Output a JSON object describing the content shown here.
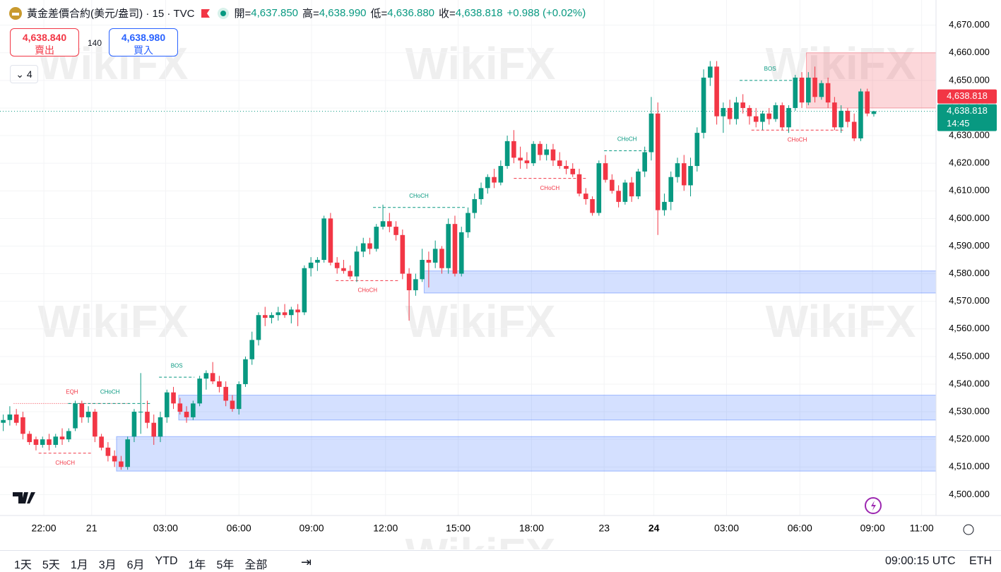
{
  "header": {
    "symbol": "黃金差價合約(美元/盎司) · 15 · TVC",
    "ohlc_labels": [
      "開=",
      "高=",
      "低=",
      "收="
    ],
    "ohlc_values": [
      "4,637.850",
      "4,638.990",
      "4,636.880",
      "4,638.818"
    ],
    "change": "+0.988 (+0.02%)",
    "sell": {
      "price": "4,638.840",
      "label": "賣出"
    },
    "spread": "140",
    "buy": {
      "price": "4,638.980",
      "label": "買入"
    },
    "indicators": "4"
  },
  "chart_data": {
    "type": "candlestick",
    "watermark": "WikiFX",
    "up_color": "#089981",
    "down_color": "#f23645",
    "xlim": [
      -0.5,
      142.5
    ],
    "ylim": [
      4496,
      4674
    ],
    "xticks": [
      {
        "value": 6.2,
        "label": "22:00"
      },
      {
        "value": 13.5,
        "label": "21"
      },
      {
        "value": 24.8,
        "label": "03:00"
      },
      {
        "value": 36,
        "label": "06:00"
      },
      {
        "value": 47.1,
        "label": "09:00"
      },
      {
        "value": 58.4,
        "label": "12:00"
      },
      {
        "value": 69.5,
        "label": "15:00"
      },
      {
        "value": 80.7,
        "label": "18:00"
      },
      {
        "value": 91.8,
        "label": "23"
      },
      {
        "value": 99.4,
        "label": "24"
      },
      {
        "value": 110.5,
        "label": "03:00"
      },
      {
        "value": 121.7,
        "label": "06:00"
      },
      {
        "value": 132.8,
        "label": "09:00"
      },
      {
        "value": 140.3,
        "label": "11:00"
      }
    ],
    "yticks": [
      {
        "value": 4500,
        "label": "4,500.000"
      },
      {
        "value": 4510,
        "label": "4,510.000"
      },
      {
        "value": 4520,
        "label": "4,520.000"
      },
      {
        "value": 4530,
        "label": "4,530.000"
      },
      {
        "value": 4540,
        "label": "4,540.000"
      },
      {
        "value": 4550,
        "label": "4,550.000"
      },
      {
        "value": 4560,
        "label": "4,560.000"
      },
      {
        "value": 4570,
        "label": "4,570.000"
      },
      {
        "value": 4580,
        "label": "4,580.000"
      },
      {
        "value": 4590,
        "label": "4,590.000"
      },
      {
        "value": 4600,
        "label": "4,600.000"
      },
      {
        "value": 4610,
        "label": "4,610.000"
      },
      {
        "value": 4620,
        "label": "4,620.000"
      },
      {
        "value": 4630,
        "label": "4,630.000"
      },
      {
        "value": 4640,
        "label": "4,640.000"
      },
      {
        "value": 4650,
        "label": "4,650.000"
      },
      {
        "value": 4660,
        "label": "4,660.000"
      },
      {
        "value": 4670,
        "label": "4,670.000"
      }
    ],
    "last_price": {
      "value": 4638.818,
      "label": "4,638.818"
    },
    "countdown": "14:45",
    "zones": [
      {
        "y": [
          4581,
          4573
        ],
        "x_start": 64.3,
        "color": "#2962ff"
      },
      {
        "y": [
          4536,
          4527
        ],
        "x_start": 26.8,
        "color": "#2962ff"
      },
      {
        "y": [
          4521,
          4508.5
        ],
        "x_start": 17.3,
        "color": "#2962ff"
      },
      {
        "y": [
          4660,
          4640
        ],
        "x_start": 122.7,
        "color": "#f23645"
      }
    ],
    "annotations": [
      {
        "text": "EQH",
        "x": [
          1.6,
          19.4
        ],
        "y": 4533,
        "color": "#f23645",
        "placement": "above",
        "style": "dotted"
      },
      {
        "text": "CHoCH",
        "x": [
          5.4,
          13.5
        ],
        "y": 4515,
        "color": "#f23645",
        "placement": "below",
        "style": "dashed"
      },
      {
        "text": "CHoCH",
        "x": [
          9.9,
          22.7
        ],
        "y": 4533,
        "color": "#089981",
        "placement": "above",
        "style": "dashed"
      },
      {
        "text": "BOS",
        "x": [
          23.8,
          29.2
        ],
        "y": 4542.5,
        "color": "#089981",
        "placement": "above",
        "style": "dashed"
      },
      {
        "text": "CHoCH",
        "x": [
          50.8,
          60.5
        ],
        "y": 4577.5,
        "color": "#f23645",
        "placement": "below",
        "style": "dashed"
      },
      {
        "text": "CHoCH",
        "x": [
          56.5,
          70.5
        ],
        "y": 4604,
        "color": "#089981",
        "placement": "above",
        "style": "dashed"
      },
      {
        "text": "CHoCH",
        "x": [
          78,
          89
        ],
        "y": 4614.5,
        "color": "#f23645",
        "placement": "below",
        "style": "dashed"
      },
      {
        "text": "CHoCH",
        "x": [
          91.8,
          98.8
        ],
        "y": 4624.5,
        "color": "#089981",
        "placement": "above",
        "style": "dashed"
      },
      {
        "text": "BOS",
        "x": [
          112.5,
          121.8
        ],
        "y": 4650,
        "color": "#089981",
        "placement": "above",
        "style": "dashed"
      },
      {
        "text": "CHoCH",
        "x": [
          114.3,
          128.3
        ],
        "y": 4632,
        "color": "#f23645",
        "placement": "below",
        "style": "dashed"
      }
    ],
    "ohlc": [
      [
        4526,
        4529,
        4523,
        4527
      ],
      [
        4527,
        4532,
        4525,
        4529
      ],
      [
        4529,
        4531,
        4525,
        4526
      ],
      [
        4528,
        4530,
        4520,
        4522
      ],
      [
        4522,
        4523,
        4518,
        4519
      ],
      [
        4520,
        4521,
        4516,
        4518
      ],
      [
        4518,
        4521,
        4517,
        4520
      ],
      [
        4520,
        4522,
        4516,
        4518
      ],
      [
        4518,
        4522,
        4517,
        4521
      ],
      [
        4521,
        4524,
        4518,
        4520
      ],
      [
        4520,
        4524,
        4519,
        4523
      ],
      [
        4524,
        4534,
        4523,
        4533
      ],
      [
        4533,
        4534,
        4526,
        4528
      ],
      [
        4528,
        4532,
        4526,
        4530
      ],
      [
        4530,
        4531,
        4519,
        4521
      ],
      [
        4521,
        4522,
        4516,
        4517
      ],
      [
        4517,
        4519,
        4512,
        4514
      ],
      [
        4514,
        4516,
        4510,
        4512
      ],
      [
        4512,
        4514,
        4509,
        4510
      ],
      [
        4510,
        4521,
        4509,
        4520
      ],
      [
        4521,
        4531,
        4519,
        4530
      ],
      [
        4530,
        4544,
        4522,
        4530
      ],
      [
        4530,
        4534,
        4524,
        4526
      ],
      [
        4526,
        4529,
        4518,
        4521
      ],
      [
        4521,
        4530,
        4519,
        4528
      ],
      [
        4528,
        4538,
        4526,
        4537
      ],
      [
        4537,
        4539,
        4531,
        4533
      ],
      [
        4533,
        4535,
        4529,
        4530
      ],
      [
        4530,
        4532,
        4526,
        4528
      ],
      [
        4528,
        4534,
        4527,
        4533
      ],
      [
        4533,
        4543,
        4532,
        4542
      ],
      [
        4542,
        4545,
        4538,
        4544
      ],
      [
        4544,
        4548,
        4540,
        4541
      ],
      [
        4541,
        4543,
        4537,
        4539
      ],
      [
        4539,
        4541,
        4532,
        4534
      ],
      [
        4534,
        4536,
        4530,
        4531
      ],
      [
        4531,
        4541,
        4529,
        4540
      ],
      [
        4540,
        4550,
        4539,
        4549
      ],
      [
        4549,
        4559,
        4547,
        4556
      ],
      [
        4556,
        4566,
        4554,
        4565
      ],
      [
        4565,
        4568,
        4561,
        4564
      ],
      [
        4564,
        4566,
        4562,
        4565
      ],
      [
        4565,
        4568,
        4563,
        4566
      ],
      [
        4566,
        4569,
        4564,
        4565
      ],
      [
        4565,
        4568,
        4562,
        4567
      ],
      [
        4567,
        4569,
        4561,
        4566
      ],
      [
        4566,
        4583,
        4565,
        4582
      ],
      [
        4582,
        4586,
        4579,
        4584
      ],
      [
        4584,
        4586,
        4581,
        4585
      ],
      [
        4585,
        4601,
        4584,
        4600
      ],
      [
        4600,
        4602,
        4583,
        4584
      ],
      [
        4584,
        4586,
        4580,
        4582
      ],
      [
        4582,
        4585,
        4580,
        4581
      ],
      [
        4581,
        4583,
        4578,
        4579
      ],
      [
        4579,
        4590,
        4577,
        4588
      ],
      [
        4588,
        4593,
        4586,
        4591
      ],
      [
        4591,
        4593,
        4587,
        4589
      ],
      [
        4589,
        4598,
        4588,
        4597
      ],
      [
        4597,
        4605,
        4596,
        4599
      ],
      [
        4599,
        4602,
        4595,
        4597
      ],
      [
        4597,
        4599,
        4592,
        4594
      ],
      [
        4594,
        4596,
        4578,
        4580
      ],
      [
        4580,
        4582,
        4563,
        4574
      ],
      [
        4574,
        4580,
        4572,
        4578
      ],
      [
        4578,
        4589,
        4577,
        4585
      ],
      [
        4585,
        4588,
        4575,
        4584
      ],
      [
        4584,
        4592,
        4582,
        4589
      ],
      [
        4589,
        4590,
        4580,
        4582
      ],
      [
        4582,
        4600,
        4580,
        4598
      ],
      [
        4598,
        4601,
        4579,
        4580
      ],
      [
        4580,
        4597,
        4579,
        4595
      ],
      [
        4595,
        4604,
        4593,
        4602
      ],
      [
        4602,
        4609,
        4600,
        4607
      ],
      [
        4607,
        4613,
        4605,
        4611
      ],
      [
        4611,
        4616,
        4609,
        4615
      ],
      [
        4615,
        4618,
        4611,
        4613
      ],
      [
        4613,
        4621,
        4612,
        4619
      ],
      [
        4619,
        4630,
        4618,
        4628
      ],
      [
        4628,
        4632,
        4620,
        4622
      ],
      [
        4622,
        4626,
        4618,
        4621
      ],
      [
        4621,
        4624,
        4618,
        4620
      ],
      [
        4620,
        4628,
        4619,
        4627
      ],
      [
        4627,
        4628,
        4621,
        4623
      ],
      [
        4623,
        4627,
        4621,
        4625
      ],
      [
        4625,
        4627,
        4619,
        4621
      ],
      [
        4621,
        4624,
        4618,
        4619
      ],
      [
        4619,
        4621,
        4616,
        4618
      ],
      [
        4618,
        4620,
        4615,
        4616
      ],
      [
        4616,
        4618,
        4608,
        4609
      ],
      [
        4609,
        4611,
        4605,
        4607
      ],
      [
        4607,
        4608,
        4601,
        4602
      ],
      [
        4602,
        4621,
        4601,
        4620
      ],
      [
        4620,
        4623,
        4613,
        4614
      ],
      [
        4614,
        4616,
        4609,
        4610
      ],
      [
        4610,
        4612,
        4604,
        4606
      ],
      [
        4606,
        4614,
        4605,
        4613
      ],
      [
        4613,
        4615,
        4606,
        4608
      ],
      [
        4608,
        4618,
        4607,
        4617
      ],
      [
        4617,
        4626,
        4615,
        4624
      ],
      [
        4624,
        4644,
        4621,
        4638
      ],
      [
        4638,
        4642,
        4594,
        4603
      ],
      [
        4603,
        4609,
        4601,
        4606
      ],
      [
        4606,
        4617,
        4603,
        4615
      ],
      [
        4615,
        4622,
        4613,
        4620
      ],
      [
        4620,
        4623,
        4610,
        4612
      ],
      [
        4612,
        4622,
        4608,
        4619
      ],
      [
        4619,
        4633,
        4617,
        4631
      ],
      [
        4631,
        4654,
        4629,
        4651
      ],
      [
        4651,
        4657,
        4648,
        4655
      ],
      [
        4655,
        4657,
        4634,
        4637
      ],
      [
        4637,
        4642,
        4631,
        4640
      ],
      [
        4640,
        4643,
        4634,
        4636
      ],
      [
        4636,
        4644,
        4634,
        4642
      ],
      [
        4642,
        4645,
        4638,
        4640
      ],
      [
        4640,
        4641,
        4634,
        4637
      ],
      [
        4637,
        4640,
        4633,
        4635
      ],
      [
        4635,
        4639,
        4632,
        4638
      ],
      [
        4638,
        4640,
        4634,
        4636
      ],
      [
        4636,
        4642,
        4635,
        4641
      ],
      [
        4641,
        4642,
        4632,
        4633
      ],
      [
        4633,
        4641,
        4631,
        4640
      ],
      [
        4640,
        4652,
        4639,
        4651
      ],
      [
        4651,
        4653,
        4640,
        4642
      ],
      [
        4642,
        4653,
        4641,
        4651
      ],
      [
        4651,
        4655,
        4642,
        4644
      ],
      [
        4644,
        4650,
        4643,
        4649
      ],
      [
        4649,
        4651,
        4640,
        4642
      ],
      [
        4642,
        4644,
        4632,
        4633
      ],
      [
        4633,
        4641,
        4631,
        4639
      ],
      [
        4639,
        4640,
        4633,
        4635
      ],
      [
        4635,
        4638,
        4628,
        4629
      ],
      [
        4629,
        4647,
        4628,
        4646
      ],
      [
        4646,
        4647,
        4637,
        4638
      ],
      [
        4637.85,
        4638.99,
        4636.88,
        4638.818
      ]
    ]
  },
  "toolbar": {
    "ranges": [
      "1天",
      "5天",
      "1月",
      "3月",
      "6月",
      "YTD",
      "1年",
      "5年",
      "全部"
    ],
    "clock": "09:00:15 UTC",
    "session": "ETH"
  }
}
